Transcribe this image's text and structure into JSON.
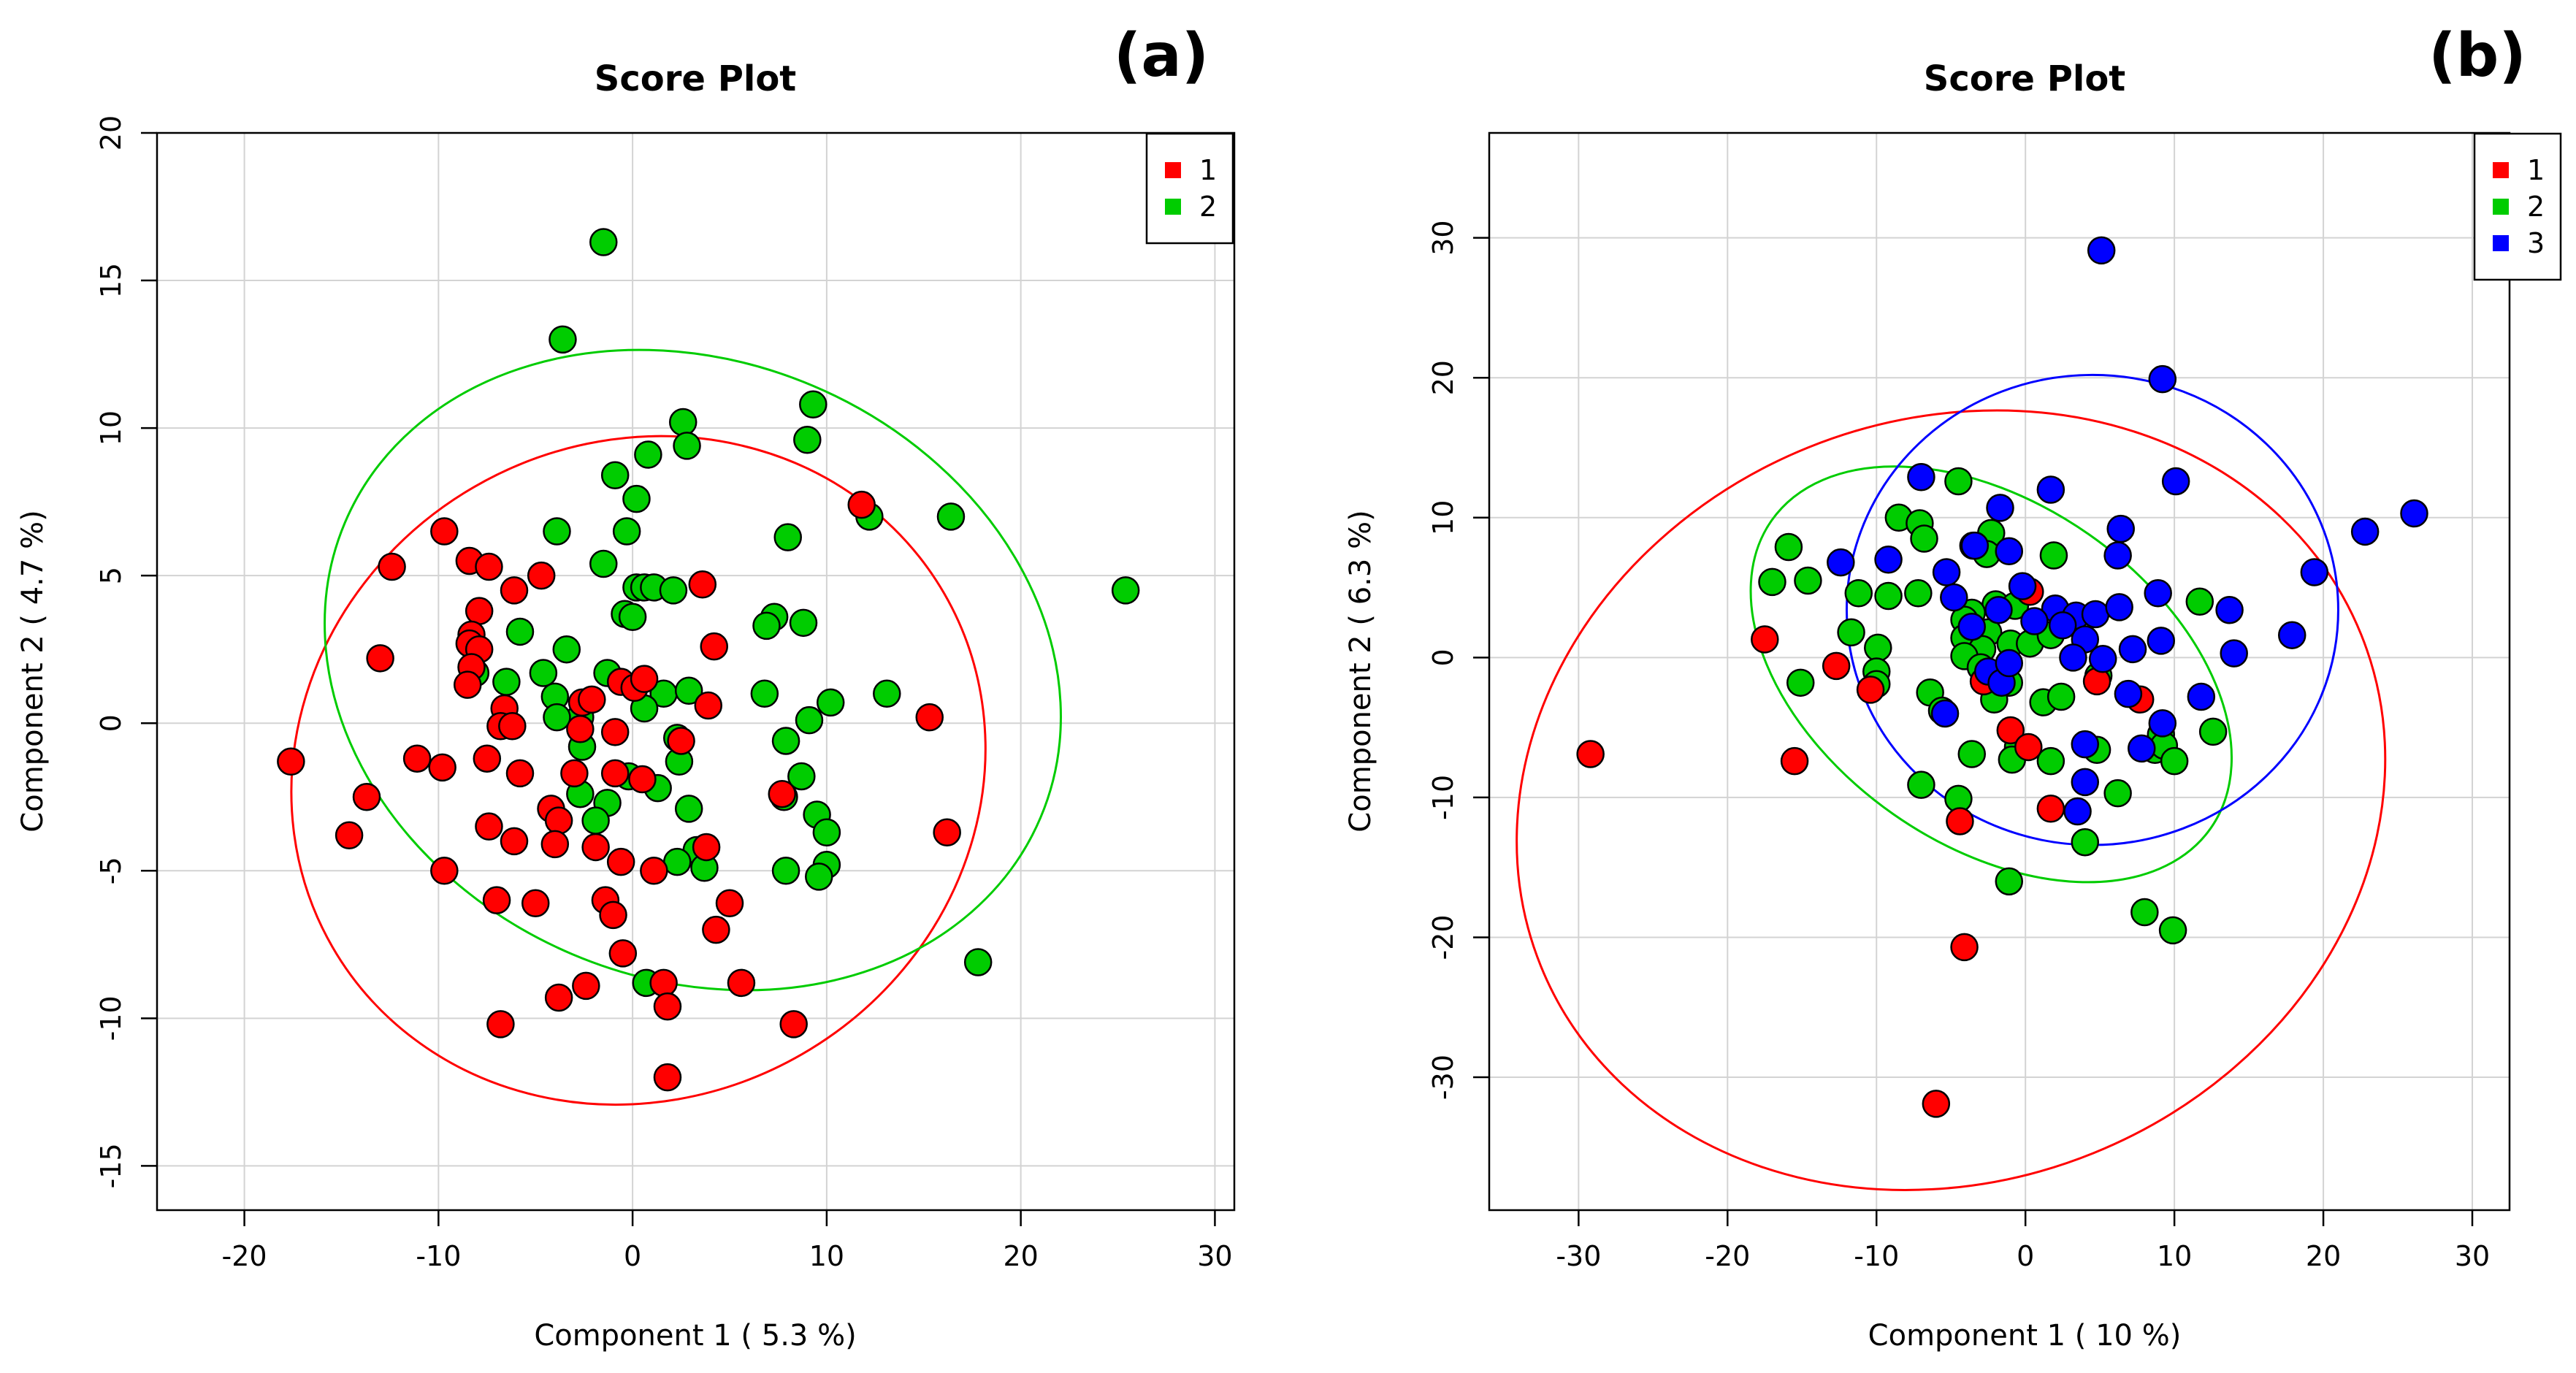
{
  "chart_data": [
    {
      "type": "scatter",
      "panel_label": "(a)",
      "title": "Score Plot",
      "xlabel": "Component 1 ( 5.3 %)",
      "ylabel": "Component 2 ( 4.7 %)",
      "xlim": [
        -24.5,
        31
      ],
      "ylim": [
        -16.5,
        20
      ],
      "xticks": [
        -20,
        -10,
        0,
        10,
        20,
        30
      ],
      "yticks": [
        -15,
        -10,
        -5,
        0,
        5,
        10,
        15,
        20
      ],
      "grid": true,
      "legend_position": "top-right",
      "legend": [
        {
          "label": "1",
          "color": "#ff0000"
        },
        {
          "label": "2",
          "color": "#00cc00"
        }
      ],
      "ellipses": [
        {
          "series": "1",
          "color": "#ff0000",
          "cx": 0.3,
          "cy": -1.6,
          "rx": 18.2,
          "ry": 11.1,
          "rotation_deg": -30
        },
        {
          "series": "2",
          "color": "#00cc00",
          "cx": 3.1,
          "cy": 1.8,
          "rx": 15.9,
          "ry": 12.8,
          "rotation_deg": -67
        }
      ],
      "series": [
        {
          "name": "2",
          "color": "#00cc00",
          "points": [
            [
              -1.5,
              16.3
            ],
            [
              -3.6,
              13.0
            ],
            [
              2.6,
              10.2
            ],
            [
              2.8,
              9.4
            ],
            [
              0.8,
              9.1
            ],
            [
              9.3,
              10.8
            ],
            [
              9.0,
              9.6
            ],
            [
              -0.9,
              8.4
            ],
            [
              0.2,
              7.6
            ],
            [
              12.2,
              7.0
            ],
            [
              16.4,
              7.0
            ],
            [
              25.4,
              4.5
            ],
            [
              8.0,
              6.3
            ],
            [
              -3.9,
              6.5
            ],
            [
              -0.3,
              6.5
            ],
            [
              -1.5,
              5.4
            ],
            [
              0.2,
              4.6
            ],
            [
              0.6,
              4.6
            ],
            [
              1.1,
              4.6
            ],
            [
              2.1,
              4.5
            ],
            [
              -0.4,
              3.7
            ],
            [
              0.0,
              3.6
            ],
            [
              7.3,
              3.6
            ],
            [
              6.9,
              3.3
            ],
            [
              8.8,
              3.4
            ],
            [
              -5.8,
              3.1
            ],
            [
              -3.4,
              2.5
            ],
            [
              -4.6,
              1.7
            ],
            [
              -8.1,
              1.7
            ],
            [
              -6.5,
              1.4
            ],
            [
              -1.3,
              1.7
            ],
            [
              1.6,
              1.0
            ],
            [
              2.9,
              1.1
            ],
            [
              -4.0,
              0.9
            ],
            [
              -2.7,
              0.2
            ],
            [
              -3.9,
              0.2
            ],
            [
              0.6,
              0.5
            ],
            [
              6.8,
              1.0
            ],
            [
              10.2,
              0.7
            ],
            [
              13.1,
              1.0
            ],
            [
              9.1,
              0.1
            ],
            [
              7.9,
              -0.6
            ],
            [
              2.3,
              -0.5
            ],
            [
              -2.6,
              -0.8
            ],
            [
              2.4,
              -1.3
            ],
            [
              -0.2,
              -1.8
            ],
            [
              8.7,
              -1.8
            ],
            [
              7.8,
              -2.5
            ],
            [
              1.3,
              -2.2
            ],
            [
              2.9,
              -2.9
            ],
            [
              -1.3,
              -2.7
            ],
            [
              -2.7,
              -2.4
            ],
            [
              -1.9,
              -3.3
            ],
            [
              9.5,
              -3.1
            ],
            [
              10.0,
              -3.7
            ],
            [
              3.3,
              -4.3
            ],
            [
              3.7,
              -4.9
            ],
            [
              2.3,
              -4.7
            ],
            [
              7.9,
              -5.0
            ],
            [
              10.0,
              -4.8
            ],
            [
              9.6,
              -5.2
            ],
            [
              17.8,
              -8.1
            ],
            [
              0.7,
              -8.8
            ]
          ]
        },
        {
          "name": "1",
          "color": "#ff0000",
          "points": [
            [
              11.8,
              7.4
            ],
            [
              -9.7,
              6.5
            ],
            [
              -12.4,
              5.3
            ],
            [
              -8.4,
              5.5
            ],
            [
              -7.4,
              5.3
            ],
            [
              -4.7,
              5.0
            ],
            [
              -6.1,
              4.5
            ],
            [
              3.6,
              4.7
            ],
            [
              -7.9,
              3.8
            ],
            [
              -8.3,
              3.0
            ],
            [
              -8.4,
              2.7
            ],
            [
              -7.9,
              2.5
            ],
            [
              -13.0,
              2.2
            ],
            [
              4.2,
              2.6
            ],
            [
              -8.3,
              1.9
            ],
            [
              -8.5,
              1.3
            ],
            [
              -6.6,
              0.5
            ],
            [
              -0.6,
              1.4
            ],
            [
              0.1,
              1.2
            ],
            [
              0.6,
              1.5
            ],
            [
              -2.6,
              0.7
            ],
            [
              -2.1,
              0.8
            ],
            [
              3.9,
              0.6
            ],
            [
              -6.8,
              -0.1
            ],
            [
              -6.2,
              -0.1
            ],
            [
              -2.7,
              -0.2
            ],
            [
              -0.9,
              -0.3
            ],
            [
              15.3,
              0.2
            ],
            [
              2.5,
              -0.6
            ],
            [
              -17.6,
              -1.3
            ],
            [
              -11.1,
              -1.2
            ],
            [
              -9.8,
              -1.5
            ],
            [
              -7.5,
              -1.2
            ],
            [
              -5.8,
              -1.7
            ],
            [
              -3.0,
              -1.7
            ],
            [
              -0.9,
              -1.7
            ],
            [
              0.5,
              -1.9
            ],
            [
              -13.7,
              -2.5
            ],
            [
              7.7,
              -2.4
            ],
            [
              -4.2,
              -2.9
            ],
            [
              -3.8,
              -3.3
            ],
            [
              -7.4,
              -3.5
            ],
            [
              -14.6,
              -3.8
            ],
            [
              -6.1,
              -4.0
            ],
            [
              -1.9,
              -4.2
            ],
            [
              -4.0,
              -4.1
            ],
            [
              3.8,
              -4.2
            ],
            [
              16.2,
              -3.7
            ],
            [
              -9.7,
              -5.0
            ],
            [
              -0.6,
              -4.7
            ],
            [
              1.1,
              -5.0
            ],
            [
              -7.0,
              -6.0
            ],
            [
              -5.0,
              -6.1
            ],
            [
              -1.4,
              -6.0
            ],
            [
              -1.0,
              -6.5
            ],
            [
              5.0,
              -6.1
            ],
            [
              4.3,
              -7.0
            ],
            [
              -0.5,
              -7.8
            ],
            [
              1.6,
              -8.8
            ],
            [
              -2.4,
              -8.9
            ],
            [
              5.6,
              -8.8
            ],
            [
              -3.8,
              -9.3
            ],
            [
              1.8,
              -9.6
            ],
            [
              -6.8,
              -10.2
            ],
            [
              8.3,
              -10.2
            ],
            [
              1.8,
              -12.0
            ]
          ]
        }
      ]
    },
    {
      "type": "scatter",
      "panel_label": "(b)",
      "title": "Score Plot",
      "xlabel": "Component 1 ( 10 %)",
      "ylabel": "Component 2 ( 6.3 %)",
      "xlim": [
        -36,
        32.5
      ],
      "ylim": [
        -39.5,
        37.5
      ],
      "xticks": [
        -30,
        -20,
        -10,
        0,
        10,
        20,
        30
      ],
      "yticks": [
        -30,
        -20,
        -10,
        0,
        10,
        20,
        30
      ],
      "grid": true,
      "legend_position": "top-right",
      "legend": [
        {
          "label": "1",
          "color": "#ff0000"
        },
        {
          "label": "2",
          "color": "#00cc00"
        },
        {
          "label": "3",
          "color": "#0000ff"
        }
      ],
      "ellipses": [
        {
          "series": "1",
          "color": "#ff0000",
          "cx": -5.0,
          "cy": -10.2,
          "rx": 29.7,
          "ry": 27.2,
          "rotation_deg": -22
        },
        {
          "series": "2",
          "color": "#00cc00",
          "cx": -2.3,
          "cy": -1.2,
          "rx": 18.0,
          "ry": 12.2,
          "rotation_deg": 35
        },
        {
          "series": "3",
          "color": "#0000ff",
          "cx": 4.5,
          "cy": 3.4,
          "rx": 16.5,
          "ry": 16.8,
          "rotation_deg": 0
        }
      ],
      "series": [
        {
          "name": "2",
          "color": "#00cc00",
          "points": [
            [
              -4.5,
              12.6
            ],
            [
              -8.5,
              10.0
            ],
            [
              -7.1,
              9.6
            ],
            [
              -6.8,
              8.5
            ],
            [
              -3.5,
              8.0
            ],
            [
              -2.3,
              8.9
            ],
            [
              -2.6,
              7.4
            ],
            [
              1.9,
              7.3
            ],
            [
              -15.9,
              7.9
            ],
            [
              -17.0,
              5.4
            ],
            [
              -14.6,
              5.5
            ],
            [
              -11.2,
              4.6
            ],
            [
              -9.2,
              4.4
            ],
            [
              -7.2,
              4.6
            ],
            [
              -2.0,
              3.8
            ],
            [
              -3.6,
              3.2
            ],
            [
              -4.1,
              2.7
            ],
            [
              -0.7,
              3.7
            ],
            [
              11.7,
              4.0
            ],
            [
              -11.7,
              1.8
            ],
            [
              -9.9,
              0.7
            ],
            [
              -2.5,
              1.8
            ],
            [
              -1.0,
              1.0
            ],
            [
              0.3,
              1.0
            ],
            [
              -4.1,
              1.4
            ],
            [
              1.7,
              1.6
            ],
            [
              -2.9,
              0.6
            ],
            [
              -4.1,
              0.1
            ],
            [
              -3.0,
              -0.7
            ],
            [
              -1.1,
              -1.8
            ],
            [
              -10.0,
              -1.0
            ],
            [
              -15.1,
              -1.8
            ],
            [
              -10.0,
              -1.9
            ],
            [
              -6.4,
              -2.5
            ],
            [
              -2.1,
              -3.0
            ],
            [
              1.2,
              -3.2
            ],
            [
              2.4,
              -2.8
            ],
            [
              4.9,
              -1.3
            ],
            [
              12.6,
              -5.3
            ],
            [
              -5.6,
              -3.8
            ],
            [
              -3.6,
              -6.9
            ],
            [
              -0.5,
              -6.4
            ],
            [
              -0.9,
              -7.3
            ],
            [
              1.7,
              -7.4
            ],
            [
              4.8,
              -6.6
            ],
            [
              8.7,
              -6.6
            ],
            [
              9.1,
              -5.5
            ],
            [
              9.3,
              -6.3
            ],
            [
              10.0,
              -7.4
            ],
            [
              -7.0,
              -9.1
            ],
            [
              6.2,
              -9.7
            ],
            [
              -4.5,
              -10.1
            ],
            [
              4.0,
              -13.2
            ],
            [
              -1.1,
              -16.0
            ],
            [
              8.0,
              -18.2
            ],
            [
              9.9,
              -19.5
            ]
          ]
        },
        {
          "name": "1",
          "color": "#ff0000",
          "points": [
            [
              0.3,
              4.7
            ],
            [
              -17.5,
              1.3
            ],
            [
              -12.7,
              -0.6
            ],
            [
              -10.4,
              -2.3
            ],
            [
              -15.5,
              -7.4
            ],
            [
              -1.0,
              -5.2
            ],
            [
              0.2,
              -6.4
            ],
            [
              -2.8,
              -1.7
            ],
            [
              4.8,
              -1.7
            ],
            [
              7.7,
              -3.0
            ],
            [
              1.7,
              -10.8
            ],
            [
              -4.4,
              -11.7
            ],
            [
              -29.2,
              -6.9
            ],
            [
              -4.1,
              -20.7
            ],
            [
              -6.0,
              -31.9
            ]
          ]
        },
        {
          "name": "3",
          "color": "#0000ff",
          "points": [
            [
              5.1,
              29.1
            ],
            [
              9.2,
              19.9
            ],
            [
              10.1,
              12.6
            ],
            [
              -7.0,
              12.9
            ],
            [
              1.7,
              12.0
            ],
            [
              -1.7,
              10.7
            ],
            [
              6.4,
              9.2
            ],
            [
              -12.4,
              6.8
            ],
            [
              -9.2,
              7.0
            ],
            [
              -3.4,
              8.0
            ],
            [
              -1.1,
              7.6
            ],
            [
              6.2,
              7.3
            ],
            [
              -5.3,
              6.1
            ],
            [
              22.8,
              9.0
            ],
            [
              26.1,
              10.3
            ],
            [
              19.4,
              6.1
            ],
            [
              -0.2,
              5.1
            ],
            [
              -4.8,
              4.3
            ],
            [
              -1.8,
              3.4
            ],
            [
              2.0,
              3.5
            ],
            [
              3.4,
              3.0
            ],
            [
              4.7,
              3.1
            ],
            [
              6.3,
              3.6
            ],
            [
              8.9,
              4.6
            ],
            [
              13.7,
              3.4
            ],
            [
              0.6,
              2.6
            ],
            [
              2.5,
              2.3
            ],
            [
              4.0,
              1.3
            ],
            [
              -3.6,
              2.2
            ],
            [
              -2.5,
              -1.0
            ],
            [
              -1.6,
              -1.8
            ],
            [
              -1.1,
              -0.4
            ],
            [
              3.2,
              0.0
            ],
            [
              5.2,
              -0.1
            ],
            [
              7.2,
              0.6
            ],
            [
              9.1,
              1.2
            ],
            [
              14.0,
              0.3
            ],
            [
              17.9,
              1.6
            ],
            [
              6.9,
              -2.6
            ],
            [
              11.8,
              -2.8
            ],
            [
              -5.4,
              -4.0
            ],
            [
              4.0,
              -6.2
            ],
            [
              7.8,
              -6.5
            ],
            [
              9.2,
              -4.7
            ],
            [
              4.0,
              -8.9
            ],
            [
              3.5,
              -11.0
            ]
          ]
        }
      ]
    }
  ]
}
